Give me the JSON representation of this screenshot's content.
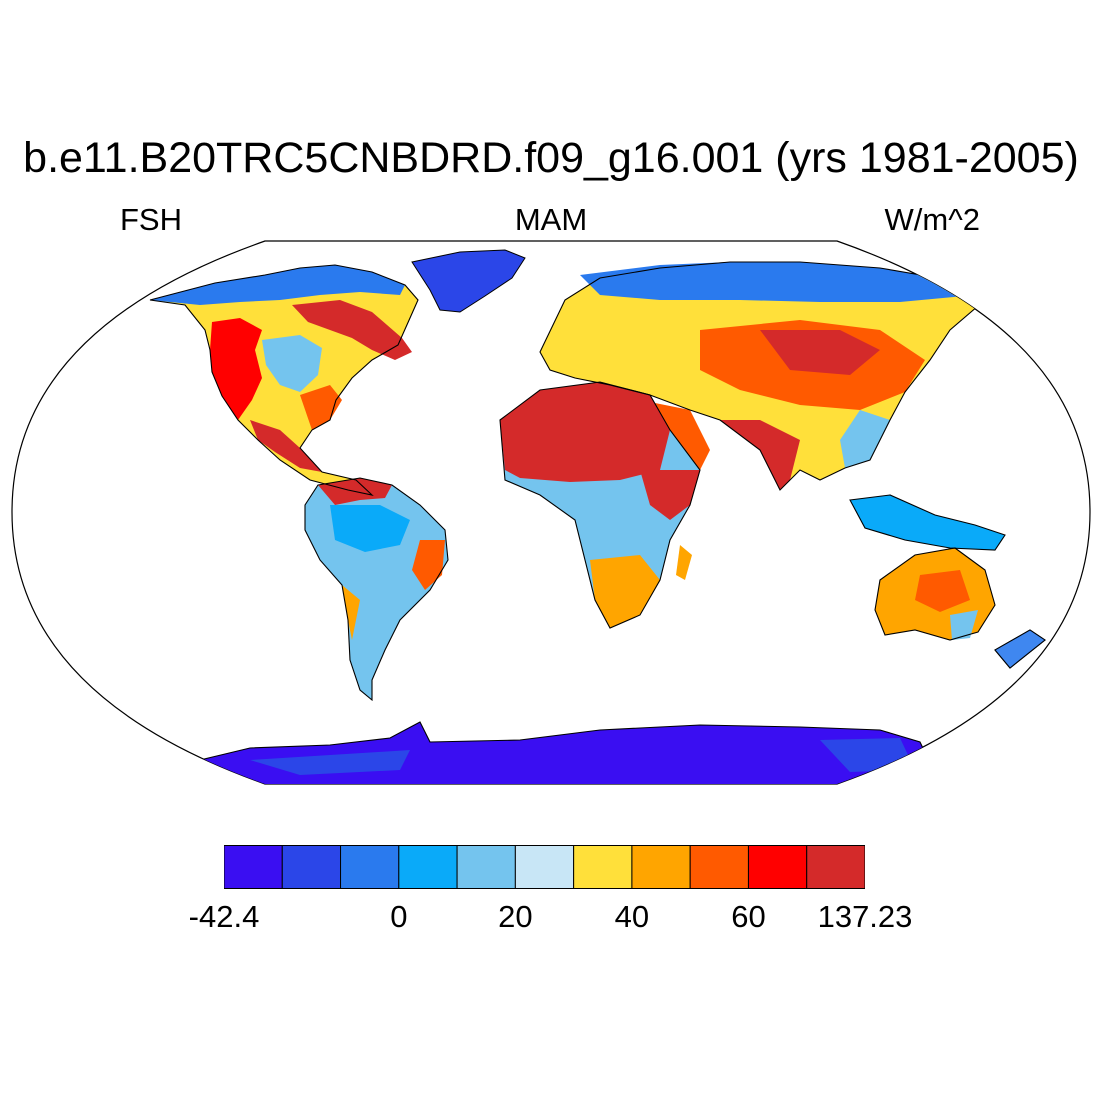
{
  "title": "b.e11.B20TRC5CNBDRD.f09_g16.001 (yrs 1981-2005)",
  "left_subtitle": "FSH",
  "center_subtitle": "MAM",
  "right_subtitle": "W/m^2",
  "colorbar": {
    "colors": [
      "#3a0ef2",
      "#2b46e8",
      "#2a7aee",
      "#0aaaf9",
      "#74c4ee",
      "#c8e6f6",
      "#ffe03a",
      "#ffa500",
      "#ff5a00",
      "#ff0000",
      "#d42a2a"
    ],
    "labels": [
      {
        "text": "-42.4",
        "boundary": 0
      },
      {
        "text": "0",
        "boundary": 3
      },
      {
        "text": "20",
        "boundary": 5
      },
      {
        "text": "40",
        "boundary": 7
      },
      {
        "text": "60",
        "boundary": 9
      },
      {
        "text": "137.23",
        "boundary": 11
      }
    ]
  }
}
